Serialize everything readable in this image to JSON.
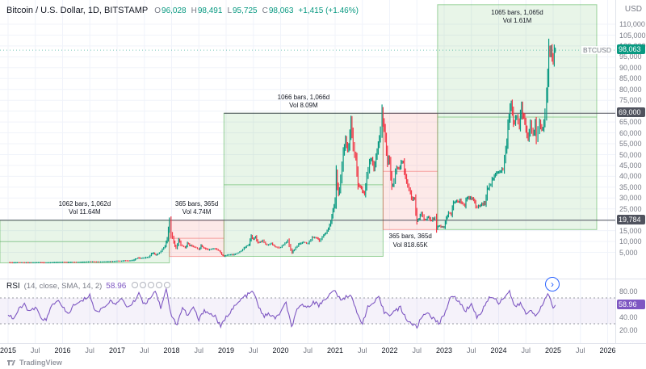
{
  "header": {
    "symbol_title": "Bitcoin / U.S. Dollar, 1D, BITSTAMP",
    "ohlc": {
      "o_label": "O",
      "o": "96,028",
      "h_label": "H",
      "h": "98,491",
      "l_label": "L",
      "l": "95,725",
      "c_label": "C",
      "c": "98,063",
      "change": "+1,415 (+1.46%)"
    }
  },
  "price_axis": {
    "currency": "USD",
    "symbol_label": "BTCUSD",
    "tick_labels": [
      "5,000",
      "10,000",
      "15,000",
      "20,000",
      "25,000",
      "30,000",
      "35,000",
      "40,000",
      "45,000",
      "50,000",
      "55,000",
      "60,000",
      "65,000",
      "70,000",
      "75,000",
      "80,000",
      "85,000",
      "90,000",
      "95,000",
      "100,000",
      "105,000",
      "110,000"
    ],
    "current": {
      "label": "98,063",
      "price": 98063,
      "color": "#089981"
    },
    "lines": [
      {
        "label": "69,000",
        "price": 69000,
        "start_t": 2018.96
      },
      {
        "label": "19,784",
        "price": 19784,
        "start_t": 2014.852
      }
    ]
  },
  "time_axis": {
    "years": [
      "2015",
      "2016",
      "2017",
      "2018",
      "2019",
      "2020",
      "2021",
      "2022",
      "2023",
      "2024",
      "2025",
      "2026"
    ],
    "mid_label": "Jul"
  },
  "rsi": {
    "title": "RSI",
    "params": "(14, close, SMA, 14, 2)",
    "value": "58.96",
    "tick_labels": [
      "80.00",
      "60.00",
      "40.00",
      "20.00"
    ]
  },
  "footer": {
    "logo_text": "TradingView"
  },
  "chart_data": {
    "type": "candlestick",
    "title": "Bitcoin / U.S. Dollar, 1D, BITSTAMP",
    "x_unit": "decimal_year",
    "x_range": [
      2014.852,
      2026.14
    ],
    "y_range": [
      0,
      110000
    ],
    "colors": {
      "up": "#089981",
      "down": "#f23645",
      "gain_fill": "rgba(76,175,80,0.13)",
      "gain_edge": "rgba(76,175,80,0.55)",
      "loss_fill": "rgba(239,83,80,0.13)",
      "loss_edge": "rgba(239,83,80,0.5)",
      "rsi": "#7e57c2",
      "rsi_band_fill": "rgba(126,87,194,0.08)",
      "rsi_band_line": "#9598a1",
      "price_line": "#50535e",
      "grid": "#f0f3fa"
    },
    "ranges": [
      {
        "id": "2015-2017-gain",
        "type": "gain",
        "bars_label": "1062 bars, 1,062d",
        "vol_label": "Vol 11.64M",
        "t1": 2014.852,
        "t2": 2017.96,
        "p1": 152,
        "p2": 19784,
        "label_pos": "above"
      },
      {
        "id": "2018-loss",
        "type": "loss",
        "bars_label": "365 bars, 365d",
        "vol_label": "Vol 4.74M",
        "t1": 2017.96,
        "t2": 2018.96,
        "p1": 3150,
        "p2": 19784,
        "label_pos": "above"
      },
      {
        "id": "2019-2021-gain",
        "type": "gain",
        "bars_label": "1066 bars, 1,066d",
        "vol_label": "Vol 8.09M",
        "t1": 2018.96,
        "t2": 2021.88,
        "p1": 3150,
        "p2": 69000,
        "label_pos": "above"
      },
      {
        "id": "2022-loss",
        "type": "loss",
        "bars_label": "365 bars, 365d",
        "vol_label": "Vol 818.65K",
        "t1": 2021.88,
        "t2": 2022.88,
        "p1": 15500,
        "p2": 69000,
        "label_pos": "below"
      },
      {
        "id": "2023-2025-gain",
        "type": "gain",
        "bars_label": "1065 bars, 1,065d",
        "vol_label": "Vol 1.61M",
        "t1": 2022.88,
        "t2": 2025.8,
        "p1": 15500,
        "p2": 119000,
        "label_pos": "inside-top"
      }
    ],
    "price_series": [
      [
        2015.0,
        315
      ],
      [
        2015.08,
        222
      ],
      [
        2015.17,
        254
      ],
      [
        2015.25,
        244
      ],
      [
        2015.33,
        236
      ],
      [
        2015.42,
        230
      ],
      [
        2015.5,
        263
      ],
      [
        2015.58,
        284
      ],
      [
        2015.67,
        230
      ],
      [
        2015.75,
        237
      ],
      [
        2015.83,
        314
      ],
      [
        2015.92,
        362
      ],
      [
        2016.0,
        430
      ],
      [
        2016.08,
        368
      ],
      [
        2016.17,
        437
      ],
      [
        2016.25,
        416
      ],
      [
        2016.33,
        449
      ],
      [
        2016.42,
        531
      ],
      [
        2016.5,
        672
      ],
      [
        2016.55,
        625
      ],
      [
        2016.67,
        575
      ],
      [
        2016.75,
        610
      ],
      [
        2016.83,
        700
      ],
      [
        2016.92,
        744
      ],
      [
        2017.0,
        963
      ],
      [
        2017.08,
        970
      ],
      [
        2017.13,
        1190
      ],
      [
        2017.21,
        1080
      ],
      [
        2017.29,
        1350
      ],
      [
        2017.38,
        2480
      ],
      [
        2017.42,
        2300
      ],
      [
        2017.5,
        2480
      ],
      [
        2017.58,
        2875
      ],
      [
        2017.63,
        4400
      ],
      [
        2017.67,
        4700
      ],
      [
        2017.71,
        3700
      ],
      [
        2017.75,
        4360
      ],
      [
        2017.83,
        6450
      ],
      [
        2017.88,
        8000
      ],
      [
        2017.92,
        11500
      ],
      [
        2017.96,
        19784
      ],
      [
        2017.99,
        13500
      ],
      [
        2018.04,
        10000
      ],
      [
        2018.08,
        6900
      ],
      [
        2018.13,
        11000
      ],
      [
        2018.17,
        8500
      ],
      [
        2018.25,
        7000
      ],
      [
        2018.29,
        9300
      ],
      [
        2018.33,
        8300
      ],
      [
        2018.42,
        7500
      ],
      [
        2018.5,
        6200
      ],
      [
        2018.54,
        8200
      ],
      [
        2018.58,
        7000
      ],
      [
        2018.67,
        6300
      ],
      [
        2018.75,
        6600
      ],
      [
        2018.83,
        6400
      ],
      [
        2018.88,
        5600
      ],
      [
        2018.92,
        4000
      ],
      [
        2018.96,
        3200
      ],
      [
        2019.0,
        3700
      ],
      [
        2019.08,
        3900
      ],
      [
        2019.17,
        4100
      ],
      [
        2019.25,
        5300
      ],
      [
        2019.33,
        7000
      ],
      [
        2019.42,
        8600
      ],
      [
        2019.46,
        12900
      ],
      [
        2019.5,
        10800
      ],
      [
        2019.54,
        12300
      ],
      [
        2019.58,
        9500
      ],
      [
        2019.67,
        10300
      ],
      [
        2019.75,
        8300
      ],
      [
        2019.83,
        9200
      ],
      [
        2019.92,
        7200
      ],
      [
        2020.0,
        7200
      ],
      [
        2020.08,
        9400
      ],
      [
        2020.13,
        10400
      ],
      [
        2020.21,
        4900
      ],
      [
        2020.25,
        6400
      ],
      [
        2020.33,
        8800
      ],
      [
        2020.42,
        9700
      ],
      [
        2020.5,
        9100
      ],
      [
        2020.58,
        11800
      ],
      [
        2020.67,
        11700
      ],
      [
        2020.71,
        10300
      ],
      [
        2020.79,
        13000
      ],
      [
        2020.83,
        13800
      ],
      [
        2020.92,
        19200
      ],
      [
        2020.96,
        23800
      ],
      [
        2021.0,
        29000
      ],
      [
        2021.02,
        40500
      ],
      [
        2021.06,
        32000
      ],
      [
        2021.1,
        38000
      ],
      [
        2021.15,
        50000
      ],
      [
        2021.19,
        58000
      ],
      [
        2021.23,
        52000
      ],
      [
        2021.27,
        59000
      ],
      [
        2021.29,
        63800
      ],
      [
        2021.33,
        54000
      ],
      [
        2021.38,
        49000
      ],
      [
        2021.42,
        36000
      ],
      [
        2021.46,
        35600
      ],
      [
        2021.5,
        33500
      ],
      [
        2021.54,
        31800
      ],
      [
        2021.58,
        39500
      ],
      [
        2021.63,
        47000
      ],
      [
        2021.67,
        48800
      ],
      [
        2021.71,
        44000
      ],
      [
        2021.75,
        48100
      ],
      [
        2021.79,
        55000
      ],
      [
        2021.83,
        61500
      ],
      [
        2021.86,
        69000
      ],
      [
        2021.88,
        65000
      ],
      [
        2021.92,
        57000
      ],
      [
        2021.96,
        46900
      ],
      [
        2022.0,
        47700
      ],
      [
        2022.04,
        35000
      ],
      [
        2022.08,
        38500
      ],
      [
        2022.13,
        44000
      ],
      [
        2022.17,
        43200
      ],
      [
        2022.21,
        46800
      ],
      [
        2022.25,
        45500
      ],
      [
        2022.29,
        39700
      ],
      [
        2022.33,
        36000
      ],
      [
        2022.38,
        31800
      ],
      [
        2022.42,
        29800
      ],
      [
        2022.46,
        29000
      ],
      [
        2022.5,
        19000
      ],
      [
        2022.54,
        20600
      ],
      [
        2022.58,
        23300
      ],
      [
        2022.63,
        20000
      ],
      [
        2022.67,
        19800
      ],
      [
        2022.71,
        21500
      ],
      [
        2022.75,
        19400
      ],
      [
        2022.79,
        20200
      ],
      [
        2022.83,
        20500
      ],
      [
        2022.86,
        15800
      ],
      [
        2022.88,
        16500
      ],
      [
        2022.92,
        17100
      ],
      [
        2022.96,
        16600
      ],
      [
        2023.0,
        16600
      ],
      [
        2023.04,
        21100
      ],
      [
        2023.08,
        23100
      ],
      [
        2023.13,
        22400
      ],
      [
        2023.17,
        28000
      ],
      [
        2023.21,
        28500
      ],
      [
        2023.25,
        28000
      ],
      [
        2023.29,
        29300
      ],
      [
        2023.33,
        27100
      ],
      [
        2023.38,
        26900
      ],
      [
        2023.42,
        30500
      ],
      [
        2023.46,
        30300
      ],
      [
        2023.5,
        29200
      ],
      [
        2023.54,
        29300
      ],
      [
        2023.58,
        26000
      ],
      [
        2023.63,
        25900
      ],
      [
        2023.67,
        26900
      ],
      [
        2023.71,
        27000
      ],
      [
        2023.75,
        27900
      ],
      [
        2023.79,
        34600
      ],
      [
        2023.83,
        35400
      ],
      [
        2023.88,
        37700
      ],
      [
        2023.92,
        39500
      ],
      [
        2023.96,
        42200
      ],
      [
        2024.0,
        42500
      ],
      [
        2024.04,
        43000
      ],
      [
        2024.08,
        43100
      ],
      [
        2024.13,
        51500
      ],
      [
        2024.17,
        62500
      ],
      [
        2024.21,
        71000
      ],
      [
        2024.23,
        73500
      ],
      [
        2024.25,
        69500
      ],
      [
        2024.29,
        63800
      ],
      [
        2024.33,
        67500
      ],
      [
        2024.38,
        64000
      ],
      [
        2024.42,
        71000
      ],
      [
        2024.46,
        67000
      ],
      [
        2024.5,
        61000
      ],
      [
        2024.54,
        57000
      ],
      [
        2024.58,
        64600
      ],
      [
        2024.63,
        59000
      ],
      [
        2024.67,
        65000
      ],
      [
        2024.69,
        57300
      ],
      [
        2024.75,
        63300
      ],
      [
        2024.79,
        60800
      ],
      [
        2024.83,
        66000
      ],
      [
        2024.85,
        70000
      ],
      [
        2024.88,
        76500
      ],
      [
        2024.9,
        88000
      ],
      [
        2024.92,
        98000
      ],
      [
        2024.94,
        95900
      ],
      [
        2024.96,
        97500
      ],
      [
        2024.98,
        94000
      ],
      [
        2025.0,
        94400
      ],
      [
        2025.02,
        96028
      ],
      [
        2025.04,
        98063
      ]
    ],
    "indicator": {
      "name": "RSI",
      "overbought": 70,
      "oversold": 30,
      "current": 58.96,
      "series": [
        [
          2015.0,
          45
        ],
        [
          2015.1,
          38
        ],
        [
          2015.2,
          52
        ],
        [
          2015.3,
          60
        ],
        [
          2015.4,
          48
        ],
        [
          2015.5,
          55
        ],
        [
          2015.6,
          40
        ],
        [
          2015.7,
          35
        ],
        [
          2015.8,
          58
        ],
        [
          2015.9,
          67
        ],
        [
          2016.0,
          55
        ],
        [
          2016.1,
          45
        ],
        [
          2016.2,
          58
        ],
        [
          2016.3,
          62
        ],
        [
          2016.4,
          68
        ],
        [
          2016.5,
          75
        ],
        [
          2016.6,
          48
        ],
        [
          2016.7,
          52
        ],
        [
          2016.8,
          60
        ],
        [
          2016.9,
          65
        ],
        [
          2017.0,
          62
        ],
        [
          2017.1,
          68
        ],
        [
          2017.2,
          55
        ],
        [
          2017.3,
          63
        ],
        [
          2017.4,
          78
        ],
        [
          2017.5,
          60
        ],
        [
          2017.6,
          70
        ],
        [
          2017.7,
          82
        ],
        [
          2017.8,
          55
        ],
        [
          2017.9,
          85
        ],
        [
          2018.0,
          40
        ],
        [
          2018.1,
          30
        ],
        [
          2018.2,
          55
        ],
        [
          2018.3,
          42
        ],
        [
          2018.4,
          56
        ],
        [
          2018.5,
          35
        ],
        [
          2018.6,
          52
        ],
        [
          2018.7,
          45
        ],
        [
          2018.8,
          42
        ],
        [
          2018.9,
          25
        ],
        [
          2019.0,
          40
        ],
        [
          2019.1,
          52
        ],
        [
          2019.2,
          60
        ],
        [
          2019.3,
          70
        ],
        [
          2019.4,
          75
        ],
        [
          2019.5,
          80
        ],
        [
          2019.6,
          55
        ],
        [
          2019.7,
          42
        ],
        [
          2019.8,
          45
        ],
        [
          2019.9,
          38
        ],
        [
          2020.0,
          48
        ],
        [
          2020.1,
          62
        ],
        [
          2020.2,
          25
        ],
        [
          2020.3,
          50
        ],
        [
          2020.4,
          60
        ],
        [
          2020.5,
          55
        ],
        [
          2020.6,
          65
        ],
        [
          2020.7,
          58
        ],
        [
          2020.8,
          68
        ],
        [
          2020.9,
          75
        ],
        [
          2021.0,
          82
        ],
        [
          2021.1,
          65
        ],
        [
          2021.2,
          72
        ],
        [
          2021.3,
          75
        ],
        [
          2021.4,
          45
        ],
        [
          2021.5,
          32
        ],
        [
          2021.6,
          55
        ],
        [
          2021.7,
          62
        ],
        [
          2021.8,
          70
        ],
        [
          2021.9,
          48
        ],
        [
          2022.0,
          45
        ],
        [
          2022.1,
          50
        ],
        [
          2022.2,
          55
        ],
        [
          2022.3,
          38
        ],
        [
          2022.4,
          30
        ],
        [
          2022.5,
          25
        ],
        [
          2022.6,
          42
        ],
        [
          2022.7,
          48
        ],
        [
          2022.8,
          38
        ],
        [
          2022.9,
          30
        ],
        [
          2023.0,
          45
        ],
        [
          2023.1,
          68
        ],
        [
          2023.2,
          72
        ],
        [
          2023.3,
          60
        ],
        [
          2023.4,
          50
        ],
        [
          2023.5,
          62
        ],
        [
          2023.6,
          40
        ],
        [
          2023.7,
          50
        ],
        [
          2023.8,
          68
        ],
        [
          2023.9,
          72
        ],
        [
          2024.0,
          62
        ],
        [
          2024.1,
          72
        ],
        [
          2024.2,
          80
        ],
        [
          2024.3,
          55
        ],
        [
          2024.4,
          62
        ],
        [
          2024.5,
          45
        ],
        [
          2024.6,
          52
        ],
        [
          2024.7,
          42
        ],
        [
          2024.8,
          58
        ],
        [
          2024.9,
          78
        ],
        [
          2025.0,
          55
        ],
        [
          2025.04,
          58.96
        ]
      ]
    }
  }
}
